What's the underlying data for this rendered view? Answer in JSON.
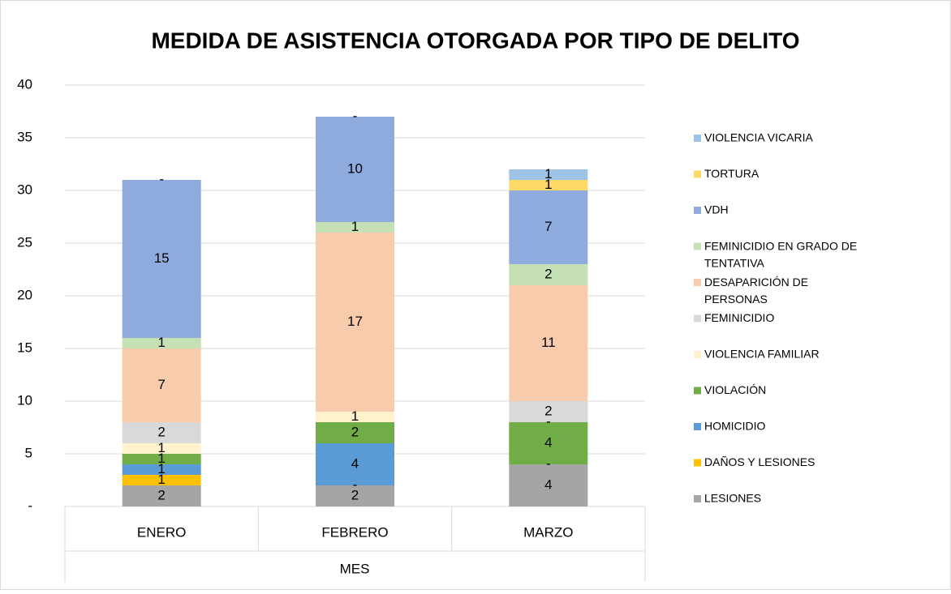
{
  "chart_data": {
    "type": "stacked_bar",
    "title": "MEDIDA DE ASISTENCIA OTORGADA POR TIPO DE DELITO",
    "x_label": "MES",
    "categories": [
      "ENERO",
      "FEBRERO",
      "MARZO"
    ],
    "series": [
      {
        "name": "LESIONES",
        "color": "#a5a5a5",
        "values": [
          2,
          2,
          4
        ]
      },
      {
        "name": "DAÑOS Y LESIONES",
        "color": "#ffc000",
        "values": [
          1,
          0,
          0
        ],
        "value_labels": [
          "1",
          "-",
          "-"
        ]
      },
      {
        "name": "HOMICIDIO",
        "color": "#5b9bd5",
        "values": [
          1,
          4,
          0
        ],
        "value_labels": [
          "1",
          "4",
          ""
        ]
      },
      {
        "name": "VIOLACIÓN",
        "color": "#70ad47",
        "values": [
          1,
          2,
          4
        ]
      },
      {
        "name": "VIOLENCIA FAMILIAR",
        "color": "#fff2cc",
        "values": [
          1,
          1,
          0
        ],
        "value_labels": [
          "1",
          "1",
          "-"
        ]
      },
      {
        "name": "FEMINICIDIO",
        "color": "#d9d9d9",
        "values": [
          2,
          0,
          2
        ],
        "value_labels": [
          "2",
          "",
          "2"
        ]
      },
      {
        "name": "DESAPARICIÓN DE PERSONAS",
        "color": "#f8cbad",
        "values": [
          7,
          17,
          11
        ]
      },
      {
        "name": "FEMINICIDIO EN GRADO DE TENTATIVA",
        "color": "#c5e0b4",
        "values": [
          1,
          1,
          2
        ]
      },
      {
        "name": "VDH",
        "color": "#8faadc",
        "values": [
          15,
          10,
          7
        ]
      },
      {
        "name": "TORTURA",
        "color": "#ffd966",
        "values": [
          0,
          0,
          1
        ],
        "value_labels": [
          "-",
          "-",
          "1"
        ]
      },
      {
        "name": "VIOLENCIA VICARIA",
        "color": "#9dc3e6",
        "values": [
          0,
          0,
          1
        ],
        "value_labels": [
          "",
          "",
          "1"
        ]
      }
    ],
    "ylim": [
      0,
      40
    ],
    "yticks": [
      {
        "value": 0,
        "label": "-"
      },
      5,
      10,
      15,
      20,
      25,
      30,
      35,
      40
    ],
    "grid": true,
    "legend": "right"
  }
}
